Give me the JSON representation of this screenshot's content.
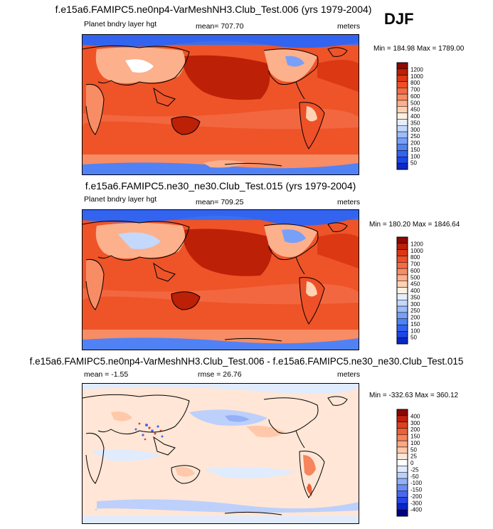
{
  "season": "DJF",
  "colors": {
    "coast": "#000000",
    "abs_scale": [
      "#000080",
      "#0a28c8",
      "#1e46e6",
      "#3264f0",
      "#5082f5",
      "#78a0f8",
      "#9cbcfa",
      "#c4d8fc",
      "#e6eefe",
      "#fff0e0",
      "#ffd2b4",
      "#fcb08c",
      "#f88c64",
      "#f46c46",
      "#ee5028",
      "#dc3814",
      "#bc2006",
      "#900800"
    ],
    "diff_scale": [
      "#000080",
      "#0a28c8",
      "#2846e6",
      "#4868f0",
      "#6c8cf4",
      "#94b0f8",
      "#bcd0fb",
      "#e0ebfe",
      "#ffffff",
      "#ffe6d6",
      "#ffc8aa",
      "#fca884",
      "#f6845c",
      "#ee6038",
      "#e04020",
      "#c02010",
      "#8a0800"
    ]
  },
  "chart_data": [
    {
      "type": "heatmap",
      "title": "f.e15a6.FAMIPC5.ne0np4-VarMeshNH3.Club_Test.006 (yrs 1979-2004)",
      "left_label": "Planet bndry layer hgt",
      "center_label": "mean= 707.70",
      "right_label": "meters",
      "minmax_label": "Min = 184.98 Max = 1789.00",
      "mean": 707.7,
      "min": 184.98,
      "max": 1789.0,
      "units": "meters",
      "colorbar_levels": [
        "1200",
        "1000",
        "800",
        "700",
        "600",
        "500",
        "450",
        "400",
        "350",
        "300",
        "250",
        "200",
        "150",
        "100",
        "50"
      ]
    },
    {
      "type": "heatmap",
      "title": "f.e15a6.FAMIPC5.ne30_ne30.Club_Test.015 (yrs 1979-2004)",
      "left_label": "Planet bndry layer hgt",
      "center_label": "mean= 709.25",
      "right_label": "meters",
      "minmax_label": "Min = 180.20 Max = 1846.64",
      "mean": 709.25,
      "min": 180.2,
      "max": 1846.64,
      "units": "meters",
      "colorbar_levels": [
        "1200",
        "1000",
        "800",
        "700",
        "600",
        "500",
        "450",
        "400",
        "350",
        "300",
        "250",
        "200",
        "150",
        "100",
        "50"
      ]
    },
    {
      "type": "heatmap",
      "title": "f.e15a6.FAMIPC5.ne0np4-VarMeshNH3.Club_Test.006 - f.e15a6.FAMIPC5.ne30_ne30.Club_Test.015",
      "left_label": "mean =  -1.55",
      "center_label": "rmse =  26.76",
      "right_label": "meters",
      "minmax_label": "Min = -332.63 Max = 360.12",
      "mean": -1.55,
      "rmse": 26.76,
      "min": -332.63,
      "max": 360.12,
      "units": "meters",
      "colorbar_levels": [
        "400",
        "300",
        "200",
        "150",
        "100",
        "50",
        "25",
        "0",
        "-25",
        "-50",
        "-100",
        "-150",
        "-200",
        "-300",
        "-400"
      ]
    }
  ]
}
